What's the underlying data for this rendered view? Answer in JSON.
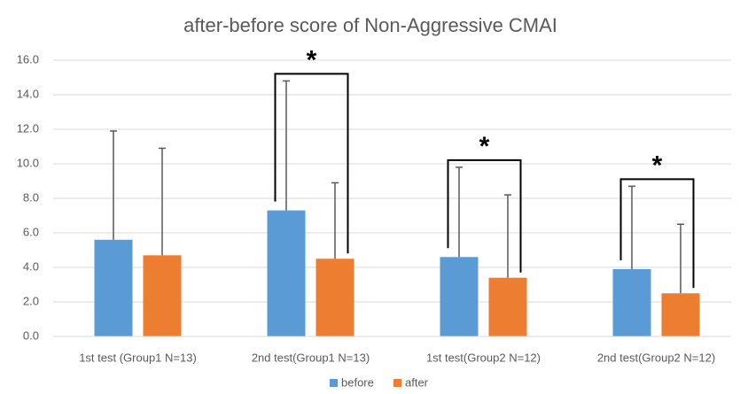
{
  "chart_data": {
    "type": "bar",
    "title": "after-before score of Non-Aggressive CMAI",
    "categories": [
      "1st test (Group1 N=13)",
      "2nd test(Group1 N=13)",
      "1st test(Group2 N=12)",
      "2nd test(Group2 N=12)"
    ],
    "series": [
      {
        "name": "before",
        "color": "#5b9bd5",
        "values": [
          5.6,
          7.3,
          4.6,
          3.9
        ],
        "errors": [
          6.3,
          7.5,
          5.2,
          4.8
        ]
      },
      {
        "name": "after",
        "color": "#ed7d31",
        "values": [
          4.7,
          4.5,
          3.4,
          2.5
        ],
        "errors": [
          6.2,
          4.4,
          4.8,
          4.0
        ]
      }
    ],
    "significance": [
      null,
      "*",
      "*",
      "*"
    ],
    "ylim": [
      0,
      16
    ],
    "yticks": [
      {
        "value": 0,
        "label": "0.0"
      },
      {
        "value": 2,
        "label": "2.0"
      },
      {
        "value": 4,
        "label": "4.0"
      },
      {
        "value": 6,
        "label": "6.0"
      },
      {
        "value": 8,
        "label": "8.0"
      },
      {
        "value": 10,
        "label": "10.0"
      },
      {
        "value": 12,
        "label": "12.0"
      },
      {
        "value": 14,
        "label": "14.0"
      },
      {
        "value": 16,
        "label": "16.0"
      }
    ],
    "grid": true,
    "legend": "bottom"
  }
}
